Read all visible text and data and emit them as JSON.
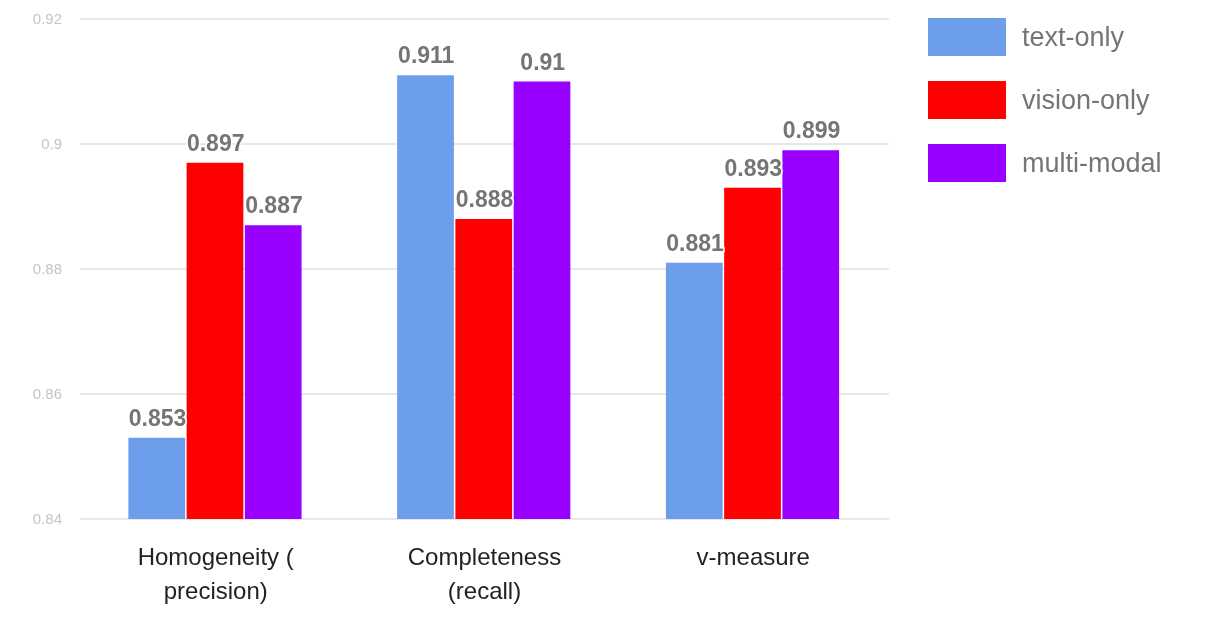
{
  "chart_data": {
    "type": "bar",
    "categories": [
      "Homogeneity ( precision)",
      "Completeness (recall)",
      "v-measure"
    ],
    "series": [
      {
        "name": "text-only",
        "color": "#6d9eeb",
        "values": [
          0.853,
          0.911,
          0.881
        ]
      },
      {
        "name": "vision-only",
        "color": "#ff0000",
        "values": [
          0.897,
          0.888,
          0.893
        ]
      },
      {
        "name": "multi-modal",
        "color": "#9900ff",
        "values": [
          0.887,
          0.91,
          0.899
        ]
      }
    ],
    "ylim": [
      0.84,
      0.92
    ],
    "yticks": [
      0.84,
      0.86,
      0.88,
      0.9,
      0.92
    ],
    "grid": "y",
    "legend": "right",
    "data_labels": true
  }
}
